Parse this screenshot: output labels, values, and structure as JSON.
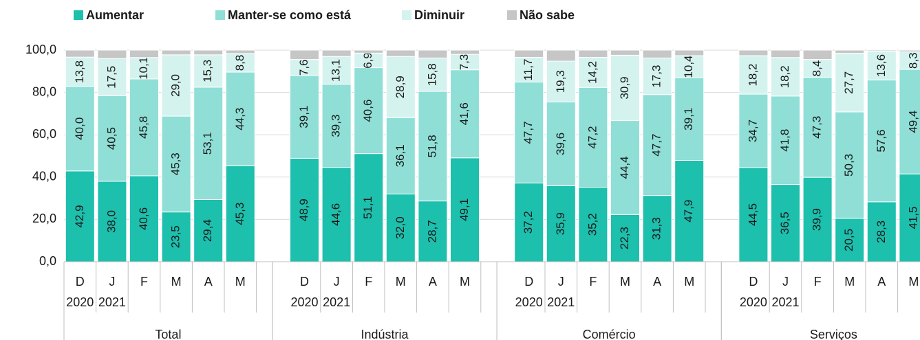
{
  "chart_data": {
    "type": "stacked_bar",
    "ylim": [
      0,
      100
    ],
    "yticks": [
      {
        "value": 0,
        "label": "0,0"
      },
      {
        "value": 20,
        "label": "20,0"
      },
      {
        "value": 40,
        "label": "40,0"
      },
      {
        "value": 60,
        "label": "60,0"
      },
      {
        "value": 80,
        "label": "80,0"
      },
      {
        "value": 100,
        "label": "100,0"
      }
    ],
    "grid": true,
    "legend": "top",
    "series": [
      {
        "name": "Aumentar",
        "color": "#1dbfad"
      },
      {
        "name": "Manter-se como está",
        "color": "#8fdfd6"
      },
      {
        "name": "Diminuir",
        "color": "#d4f3ef"
      },
      {
        "name": "Não sabe",
        "color": "#c6c6c6"
      }
    ],
    "groups": [
      {
        "name": "Total",
        "categories": [
          [
            "D",
            "2020"
          ],
          [
            "J",
            "2021"
          ],
          [
            "F"
          ],
          [
            "M"
          ],
          [
            "A"
          ],
          [
            "M"
          ]
        ],
        "series": [
          {
            "values": [
              42.9,
              38.0,
              40.6,
              23.5,
              29.4,
              45.3
            ],
            "value_labels": [
              "42,9",
              "38,0",
              "40,6",
              "23,5",
              "29,4",
              "45,3"
            ]
          },
          {
            "values": [
              40.0,
              40.5,
              45.8,
              45.3,
              53.1,
              44.3
            ],
            "value_labels": [
              "40,0",
              "40,5",
              "45,8",
              "45,3",
              "53,1",
              "44,3"
            ]
          },
          {
            "values": [
              13.8,
              17.5,
              10.1,
              29.0,
              15.3,
              8.8
            ],
            "value_labels": [
              "13,8",
              "17,5",
              "10,1",
              "29,0",
              "15,3",
              "8,8"
            ]
          },
          {
            "values": [
              3.3,
              4.0,
              3.5,
              2.2,
              2.2,
              1.6
            ]
          }
        ]
      },
      {
        "name": "Indústria",
        "categories": [
          [
            "D",
            "2020"
          ],
          [
            "J",
            "2021"
          ],
          [
            "F"
          ],
          [
            "M"
          ],
          [
            "A"
          ],
          [
            "M"
          ]
        ],
        "series": [
          {
            "values": [
              48.9,
              44.6,
              51.1,
              32.0,
              28.7,
              49.1
            ],
            "value_labels": [
              "48,9",
              "44,6",
              "51,1",
              "32,0",
              "28,7",
              "49,1"
            ]
          },
          {
            "values": [
              39.1,
              39.3,
              40.6,
              36.1,
              51.8,
              41.6
            ],
            "value_labels": [
              "39,1",
              "39,3",
              "40,6",
              "36,1",
              "51,8",
              "41,6"
            ]
          },
          {
            "values": [
              7.6,
              13.1,
              6.9,
              28.9,
              15.8,
              7.3
            ],
            "value_labels": [
              "7,6",
              "13,1",
              "6,9",
              "28,9",
              "15,8",
              "7,3"
            ]
          },
          {
            "values": [
              4.4,
              3.0,
              1.4,
              3.0,
              3.7,
              2.0
            ]
          }
        ]
      },
      {
        "name": "Comércio",
        "categories": [
          [
            "D",
            "2020"
          ],
          [
            "J",
            "2021"
          ],
          [
            "F"
          ],
          [
            "M"
          ],
          [
            "A"
          ],
          [
            "M"
          ]
        ],
        "series": [
          {
            "values": [
              37.2,
              35.9,
              35.2,
              22.3,
              31.3,
              47.9
            ],
            "value_labels": [
              "37,2",
              "35,9",
              "35,2",
              "22,3",
              "31,3",
              "47,9"
            ]
          },
          {
            "values": [
              47.7,
              39.6,
              47.2,
              44.4,
              47.7,
              39.1
            ],
            "value_labels": [
              "47,7",
              "39,6",
              "47,2",
              "44,4",
              "47,7",
              "39,1"
            ]
          },
          {
            "values": [
              11.7,
              19.3,
              14.2,
              30.9,
              17.3,
              10.4
            ],
            "value_labels": [
              "11,7",
              "19,3",
              "14,2",
              "30,9",
              "17,3",
              "10,4"
            ]
          },
          {
            "values": [
              3.4,
              5.2,
              3.4,
              2.4,
              3.7,
              2.6
            ]
          }
        ]
      },
      {
        "name": "Serviços",
        "categories": [
          [
            "D",
            "2020"
          ],
          [
            "J",
            "2021"
          ],
          [
            "F"
          ],
          [
            "M"
          ],
          [
            "A"
          ],
          [
            "M"
          ]
        ],
        "series": [
          {
            "values": [
              44.5,
              36.5,
              39.9,
              20.5,
              28.3,
              41.5
            ],
            "value_labels": [
              "44,5",
              "36,5",
              "39,9",
              "20,5",
              "28,3",
              "41,5"
            ]
          },
          {
            "values": [
              34.7,
              41.8,
              47.3,
              50.3,
              57.6,
              49.4
            ],
            "value_labels": [
              "34,7",
              "41,8",
              "47,3",
              "50,3",
              "57,6",
              "49,4"
            ]
          },
          {
            "values": [
              18.2,
              18.2,
              8.4,
              27.7,
              13.6,
              8.3
            ],
            "value_labels": [
              "18,2",
              "18,2",
              "8,4",
              "27,7",
              "13,6",
              "8,3"
            ]
          },
          {
            "values": [
              2.6,
              3.5,
              4.4,
              1.5,
              0.5,
              0.8
            ]
          }
        ]
      }
    ]
  }
}
